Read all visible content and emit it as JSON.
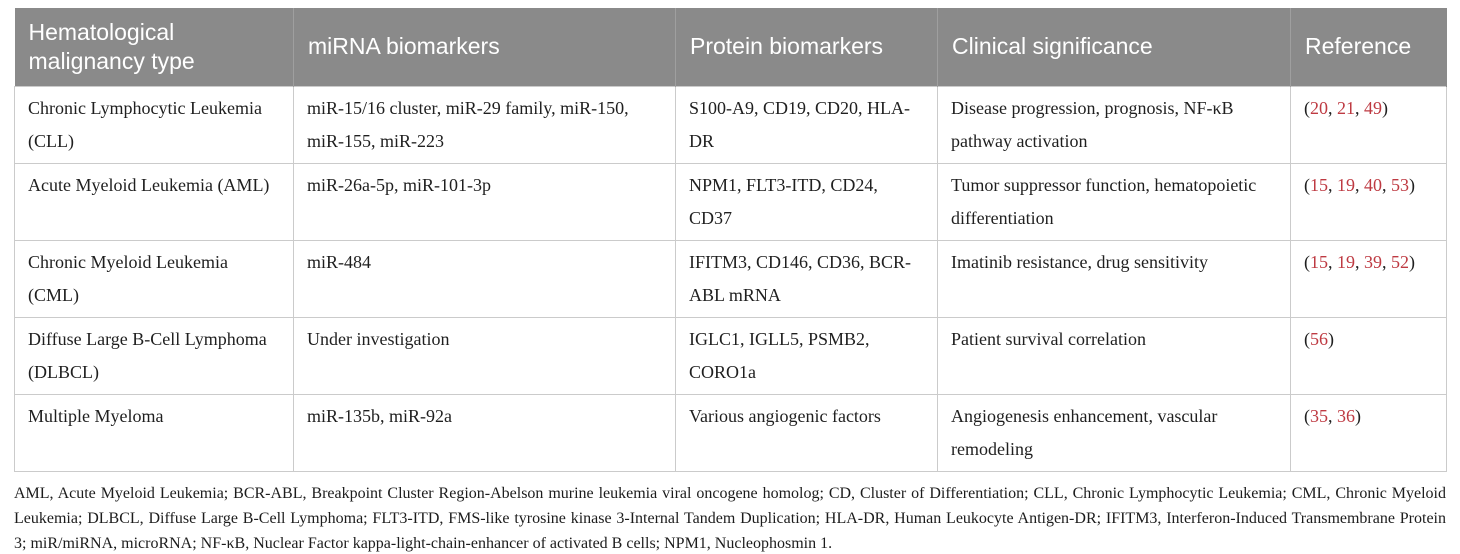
{
  "colors": {
    "header_bg": "#8a8a8a",
    "header_text": "#ffffff",
    "header_divider": "#9f9f9f",
    "cell_border": "#cbcbcb",
    "body_text": "#1f1f1f",
    "reference_red": "#be3a42"
  },
  "table": {
    "headers": [
      "Hematological malignancy type",
      "miRNA biomarkers",
      "Protein biomarkers",
      "Clinical significance",
      "Reference"
    ],
    "rows": [
      {
        "malignancy": "Chronic Lymphocytic Leukemia (CLL)",
        "mirna": "miR-15/16 cluster, miR-29 family, miR-150, miR-155, miR-223",
        "protein": "S100-A9, CD19, CD20, HLA-DR",
        "significance": "Disease progression, prognosis, NF-κB pathway activation",
        "references": [
          "20",
          "21",
          "49"
        ]
      },
      {
        "malignancy": "Acute Myeloid Leukemia (AML)",
        "mirna": "miR-26a-5p, miR-101-3p",
        "protein": "NPM1, FLT3-ITD, CD24, CD37",
        "significance": "Tumor suppressor function, hematopoietic differentiation",
        "references": [
          "15",
          "19",
          "40",
          "53"
        ]
      },
      {
        "malignancy": "Chronic Myeloid Leukemia (CML)",
        "mirna": "miR-484",
        "protein": "IFITM3, CD146, CD36, BCR-ABL mRNA",
        "significance": "Imatinib resistance, drug sensitivity",
        "references": [
          "15",
          "19",
          "39",
          "52"
        ]
      },
      {
        "malignancy": "Diffuse Large B-Cell Lymphoma (DLBCL)",
        "mirna": "Under investigation",
        "protein": "IGLC1, IGLL5, PSMB2, CORO1a",
        "significance": "Patient survival correlation",
        "references": [
          "56"
        ]
      },
      {
        "malignancy": "Multiple Myeloma",
        "mirna": "miR-135b, miR-92a",
        "protein": "Various angiogenic factors",
        "significance": "Angiogenesis enhancement, vascular remodeling",
        "references": [
          "35",
          "36"
        ]
      }
    ]
  },
  "footnote": "AML, Acute Myeloid Leukemia; BCR-ABL, Breakpoint Cluster Region-Abelson murine leukemia viral oncogene homolog; CD, Cluster of Differentiation; CLL, Chronic Lymphocytic Leukemia; CML, Chronic Myeloid Leukemia; DLBCL, Diffuse Large B-Cell Lymphoma; FLT3-ITD, FMS-like tyrosine kinase 3-Internal Tandem Duplication; HLA-DR, Human Leukocyte Antigen-DR; IFITM3, Interferon-Induced Transmembrane Protein 3; miR/miRNA, microRNA; NF-κB, Nuclear Factor kappa-light-chain-enhancer of activated B cells; NPM1, Nucleophosmin 1."
}
